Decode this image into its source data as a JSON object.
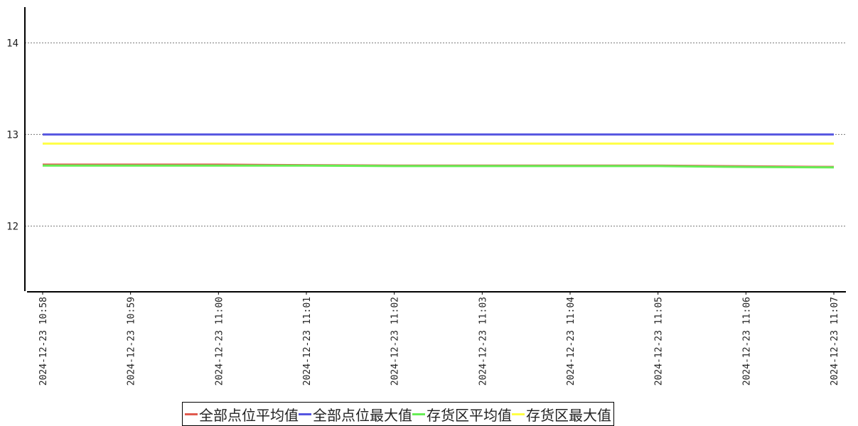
{
  "chart_data": {
    "type": "line",
    "title": "",
    "xlabel": "",
    "ylabel": "",
    "x": [
      "2024-12-23  10:58",
      "2024-12-23  10:59",
      "2024-12-23  11:00",
      "2024-12-23  11:01",
      "2024-12-23  11:02",
      "2024-12-23  11:03",
      "2024-12-23  11:04",
      "2024-12-23  11:05",
      "2024-12-23  11:06",
      "2024-12-23  11:07"
    ],
    "ylim": [
      11.29,
      14.39
    ],
    "yticks": [
      12,
      13,
      14
    ],
    "grid": "horizontal dotted",
    "legend_position": "bottom",
    "series": [
      {
        "name": "全部点位平均值",
        "color": "#e05a4e",
        "values": [
          12.67,
          12.67,
          12.67,
          12.665,
          12.66,
          12.66,
          12.66,
          12.66,
          12.652,
          12.645
        ]
      },
      {
        "name": "全部点位最大值",
        "color": "#5555e0",
        "values": [
          13,
          13,
          13,
          13,
          13,
          13,
          13,
          13,
          13,
          13
        ]
      },
      {
        "name": "存货区平均值",
        "color": "#66ee55",
        "values": [
          12.66,
          12.66,
          12.66,
          12.66,
          12.655,
          12.655,
          12.655,
          12.655,
          12.645,
          12.64
        ]
      },
      {
        "name": "存货区最大值",
        "color": "#ffff44",
        "values": [
          12.9,
          12.9,
          12.9,
          12.9,
          12.9,
          12.9,
          12.9,
          12.9,
          12.9,
          12.9
        ]
      }
    ]
  }
}
